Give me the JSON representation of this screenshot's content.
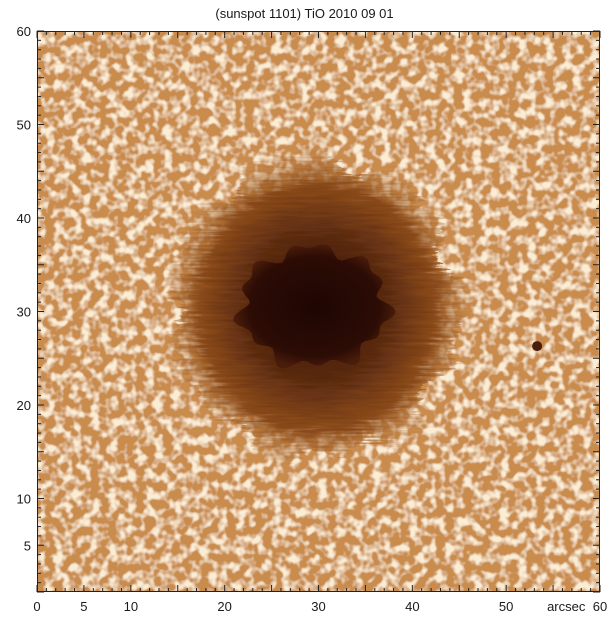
{
  "title": "(sunspot 1101) TiO 2010 09 01",
  "x_axis": {
    "range": [
      0,
      60
    ],
    "ticks": [
      {
        "value": 0,
        "label": "0"
      },
      {
        "value": 5,
        "label": "5"
      },
      {
        "value": 10,
        "label": "10"
      },
      {
        "value": 20,
        "label": "20"
      },
      {
        "value": 30,
        "label": "30"
      },
      {
        "value": 40,
        "label": "40"
      },
      {
        "value": 50,
        "label": "50"
      },
      {
        "value": 60,
        "label": "60"
      }
    ],
    "unit_label": "arcsec"
  },
  "y_axis": {
    "range": [
      0,
      60
    ],
    "ticks": [
      {
        "value": 5,
        "label": "5"
      },
      {
        "value": 10,
        "label": "10"
      },
      {
        "value": 20,
        "label": "20"
      },
      {
        "value": 30,
        "label": "30"
      },
      {
        "value": 40,
        "label": "40"
      },
      {
        "value": 50,
        "label": "50"
      },
      {
        "value": 60,
        "label": "60"
      }
    ]
  },
  "image": {
    "subject": "sunspot",
    "colors": {
      "photosphere": "#e2ad72",
      "granule_light": "#f6d8aa",
      "intergranular": "#b97c3f",
      "penumbra": "#8a4a1a",
      "umbra": "#2a0a04"
    }
  }
}
